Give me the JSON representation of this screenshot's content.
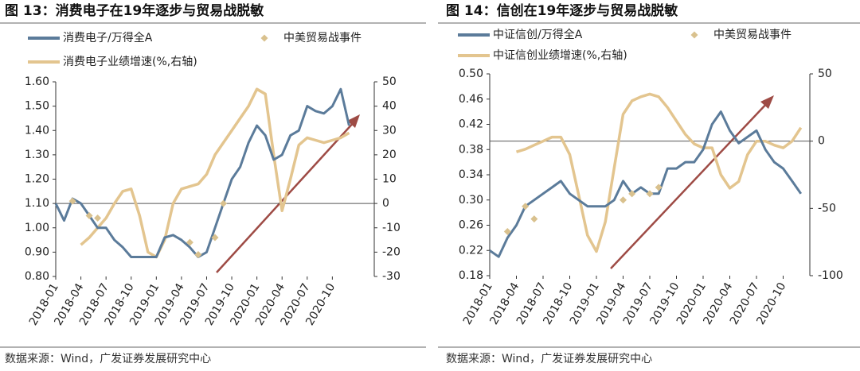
{
  "chart_data": [
    {
      "type": "line",
      "title": "图 13：消费电子在19年逐步与贸易战脱敏",
      "source": "数据来源：Wind，广发证券发展研究中心",
      "categories": [
        "2018-01",
        null,
        null,
        "2018-04",
        null,
        null,
        "2018-07",
        null,
        null,
        "2018-10",
        null,
        null,
        "2019-01",
        null,
        null,
        "2019-04",
        null,
        null,
        "2019-07",
        null,
        null,
        "2019-10",
        null,
        null,
        "2020-01",
        null,
        null,
        "2020-04",
        null,
        null,
        "2020-07",
        null,
        null,
        "2020-10",
        null,
        null
      ],
      "ylim": [
        0.8,
        1.6
      ],
      "yticks": [
        {
          "value": 1.6,
          "label": "1.60"
        },
        {
          "value": 1.5,
          "label": "1.50"
        },
        {
          "value": 1.4,
          "label": "1.40"
        },
        {
          "value": 1.3,
          "label": "1.30"
        },
        {
          "value": 1.2,
          "label": "1.20"
        },
        {
          "value": 1.1,
          "label": "1.10"
        },
        {
          "value": 1.0,
          "label": "1.00"
        },
        {
          "value": 0.9,
          "label": "0.90"
        },
        {
          "value": 0.8,
          "label": "0.80"
        }
      ],
      "y2lim": [
        -30,
        50
      ],
      "y2ticks": [
        50,
        40,
        30,
        20,
        10,
        0,
        -10,
        -20,
        -30
      ],
      "series": [
        {
          "name": "消费电子/万得全A",
          "color": "#5b7b9a",
          "mode": "line",
          "values": [
            1.1,
            1.03,
            1.12,
            1.1,
            1.05,
            1.0,
            1.0,
            0.95,
            0.92,
            0.88,
            0.88,
            0.88,
            0.88,
            0.96,
            0.97,
            0.95,
            0.92,
            0.88,
            0.9,
            1.0,
            1.1,
            1.2,
            1.25,
            1.35,
            1.42,
            1.38,
            1.28,
            1.3,
            1.38,
            1.4,
            1.5,
            1.48,
            1.47,
            1.5,
            1.57,
            1.42
          ]
        },
        {
          "name": "中美贸易战事件",
          "color": "#d9c18e",
          "mode": "markers",
          "values": [
            null,
            null,
            1.11,
            null,
            1.05,
            1.04,
            null,
            null,
            null,
            null,
            null,
            null,
            null,
            null,
            null,
            null,
            0.94,
            0.89,
            null,
            0.96,
            1.1,
            null,
            null,
            null,
            null,
            null,
            null,
            null,
            null,
            null,
            null,
            null,
            null,
            null,
            null,
            null
          ]
        },
        {
          "name": "消费电子业绩增速(%,右轴)",
          "color": "#e3c58f",
          "mode": "line",
          "axis": "y2",
          "values": [
            null,
            null,
            null,
            -17,
            -14,
            -10,
            -6,
            0,
            5,
            6,
            -5,
            -20,
            -22,
            -15,
            0,
            6,
            7,
            8,
            12,
            20,
            25,
            30,
            35,
            40,
            47,
            45,
            20,
            -3,
            10,
            24,
            27,
            26,
            25,
            26,
            27,
            29
          ]
        }
      ]
    },
    {
      "type": "line",
      "title": "图 14：信创在19年逐步与贸易战脱敏",
      "source": "数据来源：Wind，广发证券发展研究中心",
      "categories": [
        "2018-01",
        null,
        null,
        "2018-04",
        null,
        null,
        "2018-07",
        null,
        null,
        "2018-10",
        null,
        null,
        "2019-01",
        null,
        null,
        "2019-04",
        null,
        null,
        "2019-07",
        null,
        null,
        "2019-10",
        null,
        null,
        "2020-01",
        null,
        null,
        "2020-04",
        null,
        null,
        "2020-07",
        null,
        null,
        "2020-10",
        null,
        null
      ],
      "ylim": [
        0.18,
        0.5
      ],
      "yticks": [
        {
          "value": 0.5,
          "label": "0.50"
        },
        0.46,
        0.42,
        0.38,
        0.34,
        {
          "value": 0.3,
          "label": "0.30"
        },
        0.26,
        0.22,
        0.18
      ],
      "y2lim": [
        -100,
        50
      ],
      "y2ticks": [
        50,
        0,
        -50,
        -100
      ],
      "series": [
        {
          "name": "中证信创/万得全A",
          "color": "#5b7b9a",
          "mode": "line",
          "values": [
            0.22,
            0.21,
            0.24,
            0.26,
            0.29,
            0.3,
            0.31,
            0.32,
            0.33,
            0.31,
            0.3,
            0.29,
            0.29,
            0.29,
            0.3,
            0.33,
            0.31,
            0.32,
            0.31,
            0.31,
            0.35,
            0.35,
            0.36,
            0.36,
            0.38,
            0.42,
            0.44,
            0.41,
            0.39,
            0.4,
            0.41,
            0.38,
            0.36,
            0.35,
            0.33,
            0.31
          ]
        },
        {
          "name": "中美贸易战事件",
          "color": "#d9c18e",
          "mode": "markers",
          "values": [
            null,
            null,
            0.25,
            null,
            0.29,
            0.27,
            null,
            null,
            null,
            null,
            null,
            null,
            null,
            null,
            null,
            0.3,
            0.31,
            null,
            0.31,
            0.32,
            null,
            null,
            null,
            null,
            null,
            null,
            null,
            null,
            null,
            null,
            null,
            null,
            null,
            null,
            null,
            null
          ]
        },
        {
          "name": "中证信创业绩增速(%,右轴)",
          "color": "#e3c58f",
          "mode": "line",
          "axis": "y2",
          "values": [
            null,
            null,
            null,
            -8,
            -6,
            -3,
            0,
            3,
            3,
            -10,
            -40,
            -70,
            -82,
            -60,
            -20,
            20,
            30,
            33,
            35,
            33,
            25,
            15,
            5,
            -2,
            -5,
            -5,
            -25,
            -35,
            -30,
            -10,
            0,
            0,
            -3,
            -5,
            0,
            10
          ]
        }
      ]
    }
  ]
}
